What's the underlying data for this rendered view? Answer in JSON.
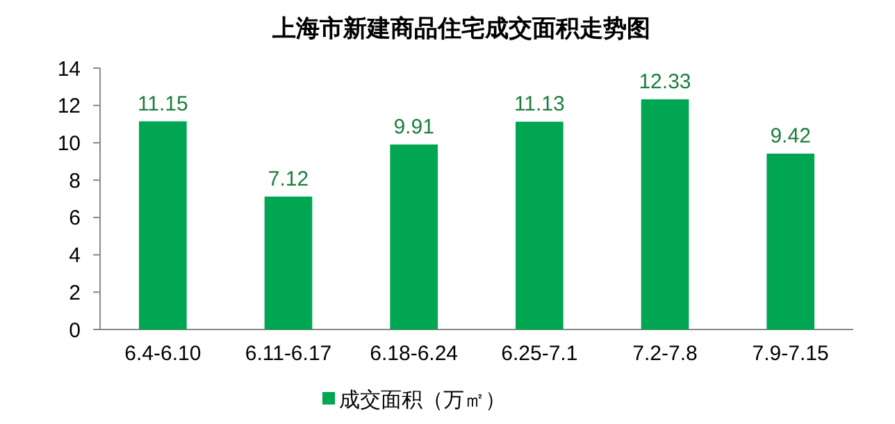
{
  "chart_data": {
    "type": "bar",
    "title": "上海市新建商品住宅成交面积走势图",
    "categories": [
      "6.4-6.10",
      "6.11-6.17",
      "6.18-6.24",
      "6.25-7.1",
      "7.2-7.8",
      "7.9-7.15"
    ],
    "series": [
      {
        "name": "成交面积（万㎡）",
        "color": "#00a651",
        "values": [
          11.15,
          7.12,
          9.91,
          11.13,
          12.33,
          9.42
        ]
      }
    ],
    "ylim": [
      0,
      14
    ],
    "yticks": [
      0,
      2,
      4,
      6,
      8,
      10,
      12,
      14
    ],
    "grid": false,
    "legend": "bottom",
    "data_labels": true
  }
}
